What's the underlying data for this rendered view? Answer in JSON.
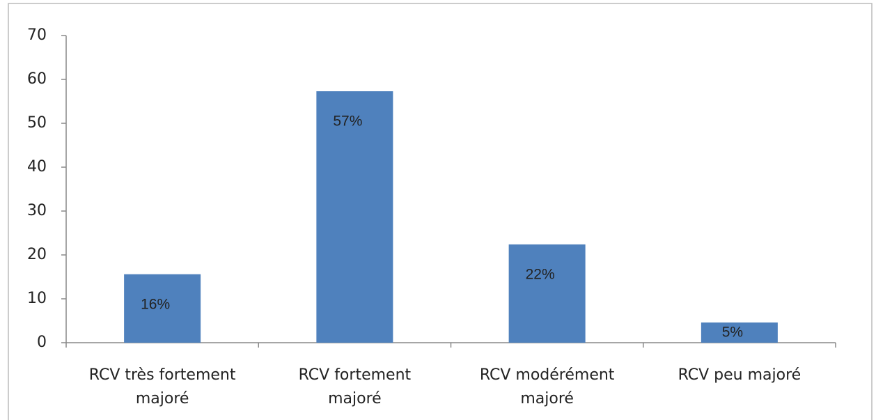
{
  "chart_data": {
    "type": "bar",
    "categories": [
      "RCV très fortement majoré",
      "RCV fortement majoré",
      "RCV modérément majoré",
      "RCV peu majoré"
    ],
    "values": [
      15.6,
      57.3,
      22.4,
      4.6
    ],
    "value_labels": [
      "16%",
      "57%",
      "22%",
      "5%"
    ],
    "color": "#4f81bd",
    "ylim": [
      0,
      70
    ],
    "yticks": [
      0,
      10,
      20,
      30,
      40,
      50,
      60,
      70
    ],
    "grid": false
  }
}
